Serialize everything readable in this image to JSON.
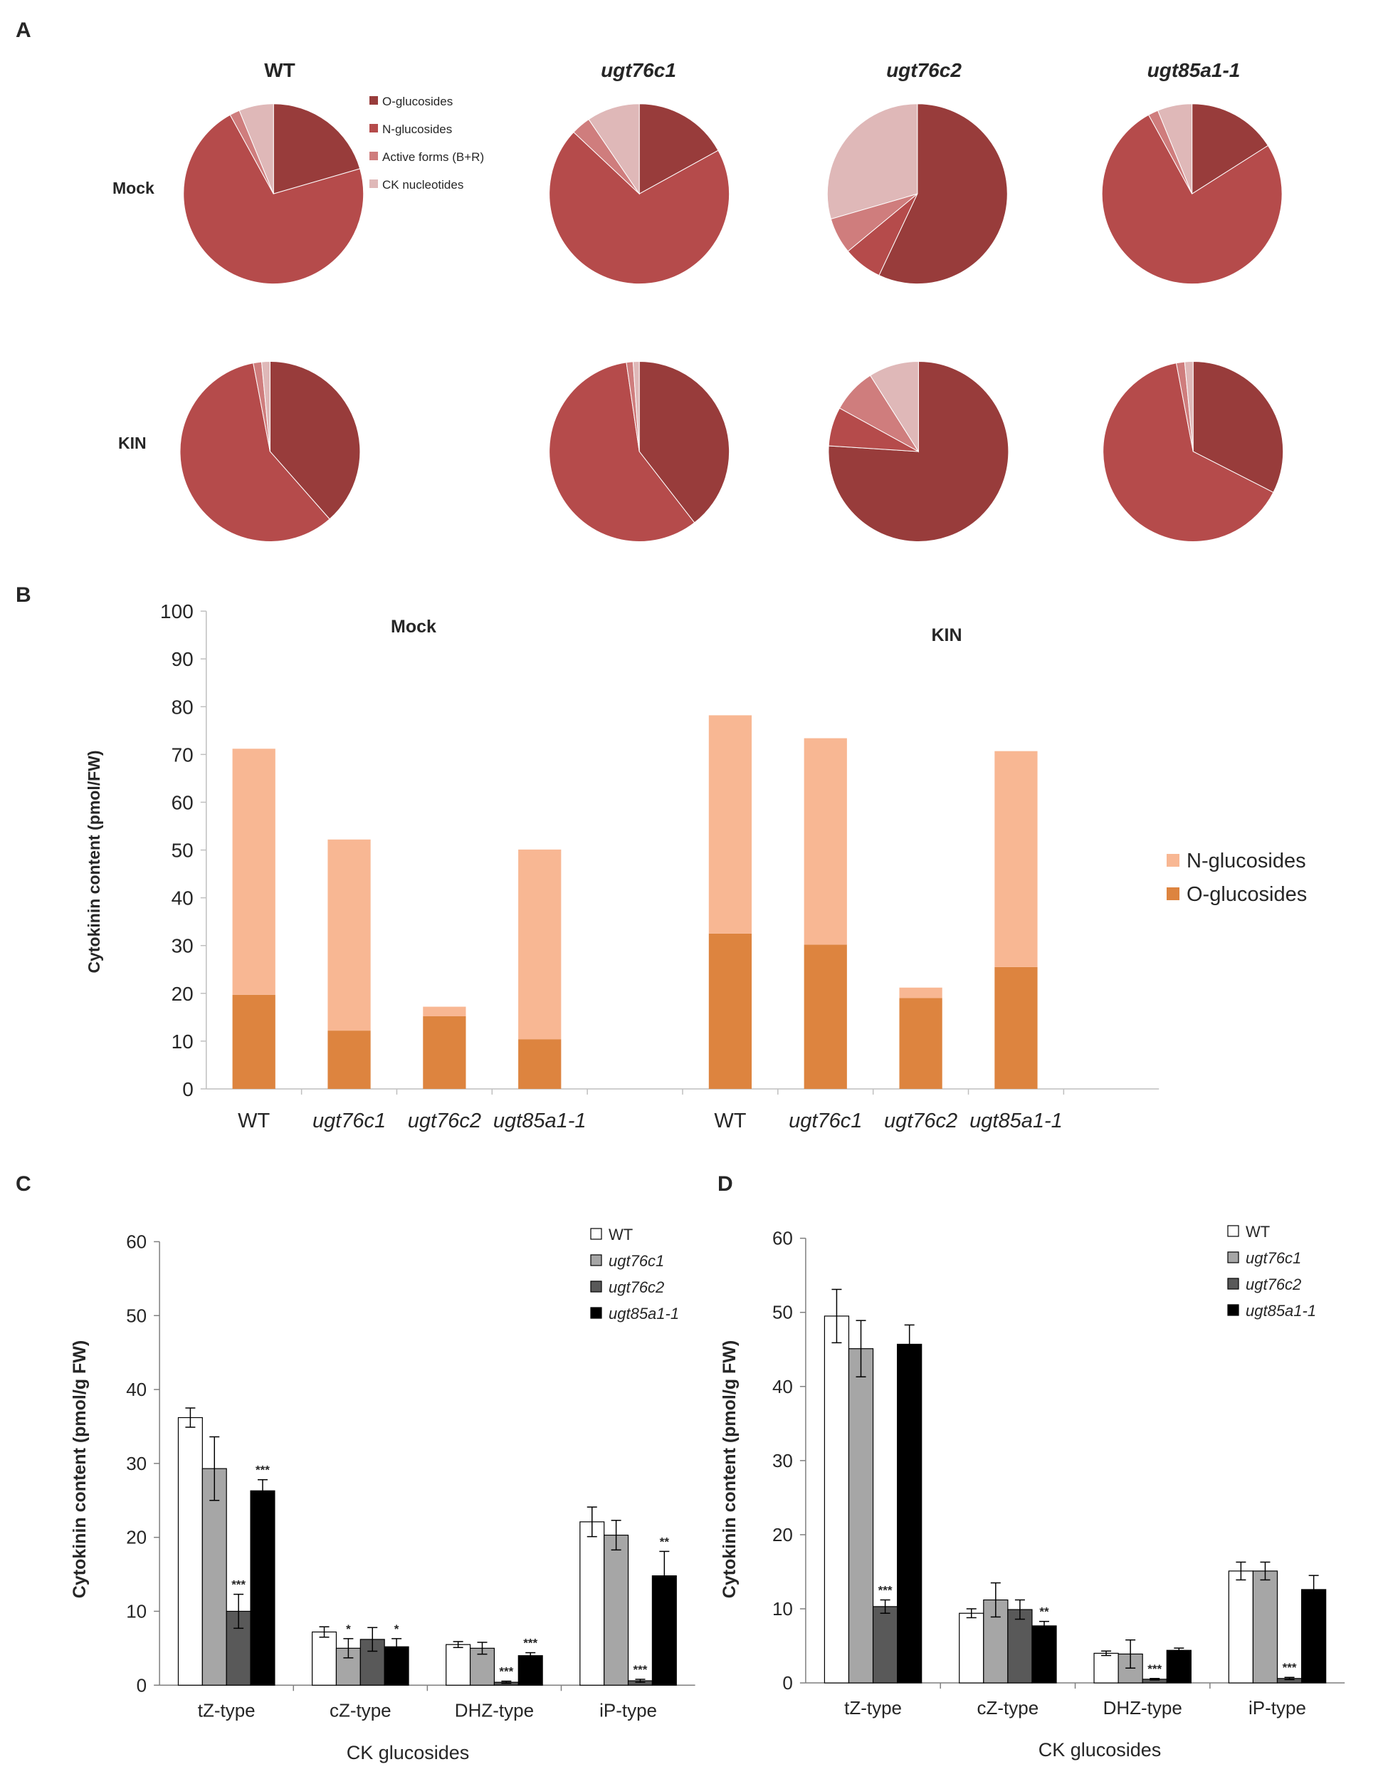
{
  "chart_data": [
    {
      "panel": "A",
      "type": "pie",
      "legend": [
        "O-glucosides",
        "N-glucosides",
        "Active forms (B+R)",
        "CK nucleotides"
      ],
      "colors": [
        "#983c3b",
        "#b54b4b",
        "#cf7d7d",
        "#dfb8b8"
      ],
      "column_titles": [
        "WT",
        "ugt76c1",
        "ugt76c2",
        "ugt85a1-1"
      ],
      "row_labels": [
        "Mock",
        "KIN"
      ],
      "pies": [
        {
          "row": "Mock",
          "genotype": "WT",
          "values": [
            20.5,
            71.5,
            1.8,
            6.2
          ]
        },
        {
          "row": "Mock",
          "genotype": "ugt76c1",
          "values": [
            17,
            70,
            3.5,
            9.5
          ]
        },
        {
          "row": "Mock",
          "genotype": "ugt76c2",
          "values": [
            57,
            7,
            6.5,
            29.5
          ]
        },
        {
          "row": "Mock",
          "genotype": "ugt85a1-1",
          "values": [
            16,
            76,
            1.8,
            6.2
          ]
        },
        {
          "row": "KIN",
          "genotype": "WT",
          "values": [
            38.5,
            58.5,
            1.5,
            1.5
          ]
        },
        {
          "row": "KIN",
          "genotype": "ugt76c1",
          "values": [
            39.5,
            58.2,
            1.2,
            1.1
          ]
        },
        {
          "row": "KIN",
          "genotype": "ugt76c2",
          "values": [
            76,
            7,
            8,
            9
          ]
        },
        {
          "row": "KIN",
          "genotype": "ugt85a1-1",
          "values": [
            32.5,
            64.5,
            1.5,
            1.5
          ]
        }
      ]
    },
    {
      "panel": "B",
      "type": "bar",
      "stacked": true,
      "ylabel": "Cytokinin content (pmol/FW)",
      "ylim": [
        0,
        100
      ],
      "yticks": [
        0,
        10,
        20,
        30,
        40,
        50,
        60,
        70,
        80,
        90,
        100
      ],
      "groups": [
        "Mock",
        "KIN"
      ],
      "categories": [
        "WT",
        "ugt76c1",
        "ugt76c2",
        "ugt85a1-1"
      ],
      "series": [
        {
          "name": "N-glucosides",
          "color": "#f8b793",
          "values": {
            "Mock": [
              51.5,
              40,
              2,
              39.7
            ],
            "KIN": [
              45.7,
              43.2,
              2.2,
              45.2
            ]
          }
        },
        {
          "name": "O-glucosides",
          "color": "#dd843f",
          "values": {
            "Mock": [
              19.7,
              12.2,
              15.2,
              10.4
            ],
            "KIN": [
              32.5,
              30.2,
              19,
              25.5
            ]
          }
        }
      ],
      "legend_order": [
        "N-glucosides",
        "O-glucosides"
      ]
    },
    {
      "panel": "C",
      "type": "bar",
      "xlabel": "CK glucosides",
      "ylabel": "Cytokinin content (pmol/g FW)",
      "ylim": [
        0,
        60
      ],
      "yticks": [
        0,
        10,
        20,
        30,
        40,
        50,
        60
      ],
      "categories": [
        "tZ-type",
        "cZ-type",
        "DHZ-type",
        "iP-type"
      ],
      "series": [
        {
          "name": "WT",
          "color": "#ffffff",
          "values": [
            36.2,
            7.2,
            5.5,
            22.1
          ],
          "errors": [
            1.3,
            0.7,
            0.4,
            2
          ]
        },
        {
          "name": "ugt76c1",
          "color": "#a6a6a6",
          "values": [
            29.3,
            5,
            5,
            20.3
          ],
          "errors": [
            4.3,
            1.3,
            0.8,
            2
          ]
        },
        {
          "name": "ugt76c2",
          "color": "#595959",
          "values": [
            10,
            6.2,
            0.4,
            0.6
          ],
          "errors": [
            2.3,
            1.6,
            0.15,
            0.2
          ]
        },
        {
          "name": "ugt85a1-1",
          "color": "#000000",
          "values": [
            26.3,
            5.2,
            4,
            14.8
          ],
          "errors": [
            1.5,
            1.1,
            0.4,
            3.3
          ]
        }
      ],
      "significance": [
        {
          "category": "tZ-type",
          "series": "ugt76c2",
          "label": "***"
        },
        {
          "category": "tZ-type",
          "series": "ugt85a1-1",
          "label": "***"
        },
        {
          "category": "cZ-type",
          "series": "ugt76c1",
          "label": "*"
        },
        {
          "category": "cZ-type",
          "series": "ugt85a1-1",
          "label": "*"
        },
        {
          "category": "DHZ-type",
          "series": "ugt76c2",
          "label": "***"
        },
        {
          "category": "DHZ-type",
          "series": "ugt85a1-1",
          "label": "***"
        },
        {
          "category": "iP-type",
          "series": "ugt76c2",
          "label": "***"
        },
        {
          "category": "iP-type",
          "series": "ugt85a1-1",
          "label": "**"
        }
      ]
    },
    {
      "panel": "D",
      "type": "bar",
      "xlabel": "CK glucosides",
      "ylabel": "Cytokinin content (pmol/g FW)",
      "ylim": [
        0,
        60
      ],
      "yticks": [
        0,
        10,
        20,
        30,
        40,
        50,
        60
      ],
      "categories": [
        "tZ-type",
        "cZ-type",
        "DHZ-type",
        "iP-type"
      ],
      "series": [
        {
          "name": "WT",
          "color": "#ffffff",
          "values": [
            49.5,
            9.4,
            4,
            15.1
          ],
          "errors": [
            3.6,
            0.6,
            0.3,
            1.2
          ]
        },
        {
          "name": "ugt76c1",
          "color": "#a6a6a6",
          "values": [
            45.1,
            11.2,
            3.9,
            15.1
          ],
          "errors": [
            3.8,
            2.3,
            1.9,
            1.2
          ]
        },
        {
          "name": "ugt76c2",
          "color": "#595959",
          "values": [
            10.3,
            9.9,
            0.5,
            0.6
          ],
          "errors": [
            0.9,
            1.3,
            0.1,
            0.15
          ]
        },
        {
          "name": "ugt85a1-1",
          "color": "#000000",
          "values": [
            45.7,
            7.7,
            4.4,
            12.6
          ],
          "errors": [
            2.6,
            0.6,
            0.3,
            1.9
          ]
        }
      ],
      "significance": [
        {
          "category": "tZ-type",
          "series": "ugt76c2",
          "label": "***"
        },
        {
          "category": "cZ-type",
          "series": "ugt85a1-1",
          "label": "**"
        },
        {
          "category": "DHZ-type",
          "series": "ugt76c2",
          "label": "***"
        },
        {
          "category": "iP-type",
          "series": "ugt76c2",
          "label": "***"
        }
      ]
    }
  ]
}
